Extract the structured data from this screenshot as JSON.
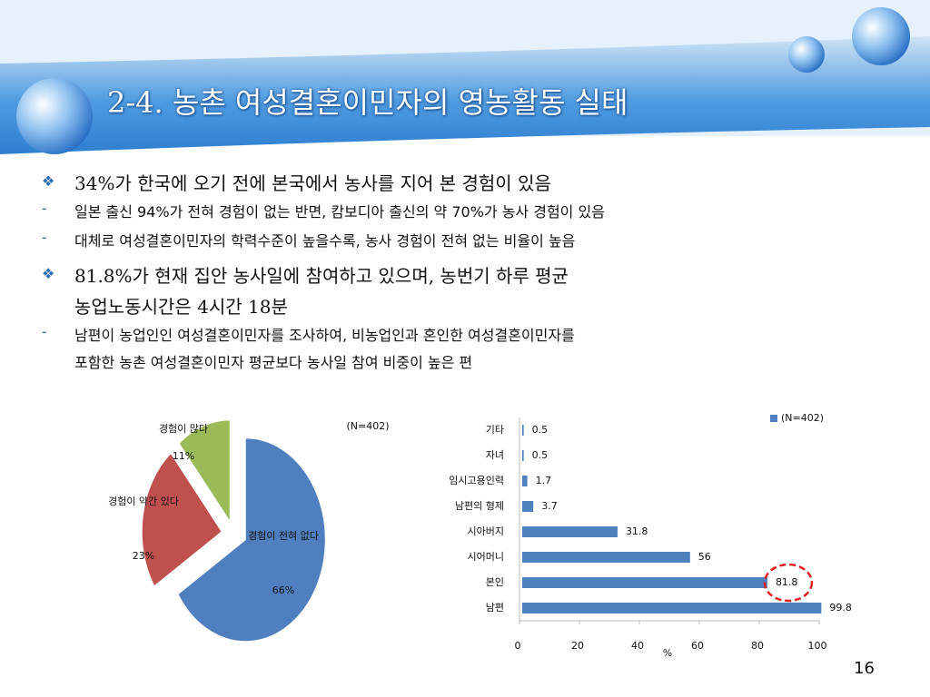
{
  "title": "2-4. 농촌 여성결혼이민자의 영농활동 실태",
  "bullets": [
    {
      "text": [
        "34%가 한국에 오기 전에 본국에서 농사를 지어 본 경험이 있음"
      ],
      "subs": [
        [
          "일본 출신 94%가 전혀 경험이 없는 반면, 캄보디아 출신의 약 70%가 농사 경험이 있음"
        ],
        [
          "대체로 여성결혼이민자의 학력수준이 높을수록, 농사 경험이 전혀 없는 비율이 높음"
        ]
      ]
    },
    {
      "text": [
        "81.8%가 현재 집안 농사일에 참여하고 있으며, 농번기 하루 평균",
        "농업노동시간은 4시간 18분"
      ],
      "subs": [
        [
          "남편이 농업인인 여성결혼이민자를 조사하여, 비농업인과 혼인한 여성결혼이민자를",
          "포함한 농촌 여성결혼이민자 평균보다 농사일 참여 비중이 높은 편"
        ]
      ]
    }
  ],
  "page_number": "16",
  "chart_data": [
    {
      "type": "pie",
      "annotation": "(N=402)",
      "categories": [
        "경험이 전혀 없다",
        "경험이 약간 있다",
        "경험이 많다"
      ],
      "values": [
        66,
        23,
        11
      ],
      "value_labels": [
        "66%",
        "23%",
        "11%"
      ],
      "colors": [
        "#4f7fbe",
        "#c0504d",
        "#9bbb59"
      ]
    },
    {
      "type": "hbar",
      "categories": [
        "기타",
        "자녀",
        "임시고용인력",
        "남편의 형제",
        "시아버지",
        "시어머니",
        "본인",
        "남편"
      ],
      "series": [
        {
          "name": "(N=402)",
          "color": "#4f81bd",
          "values": [
            0.5,
            0.5,
            1.7,
            3.7,
            31.8,
            56,
            81.8,
            99.8
          ]
        }
      ],
      "xlim": [
        0,
        100
      ],
      "xticks": [
        0,
        20,
        40,
        60,
        80,
        100
      ],
      "xlabel": "%",
      "legend": "top-right"
    }
  ]
}
